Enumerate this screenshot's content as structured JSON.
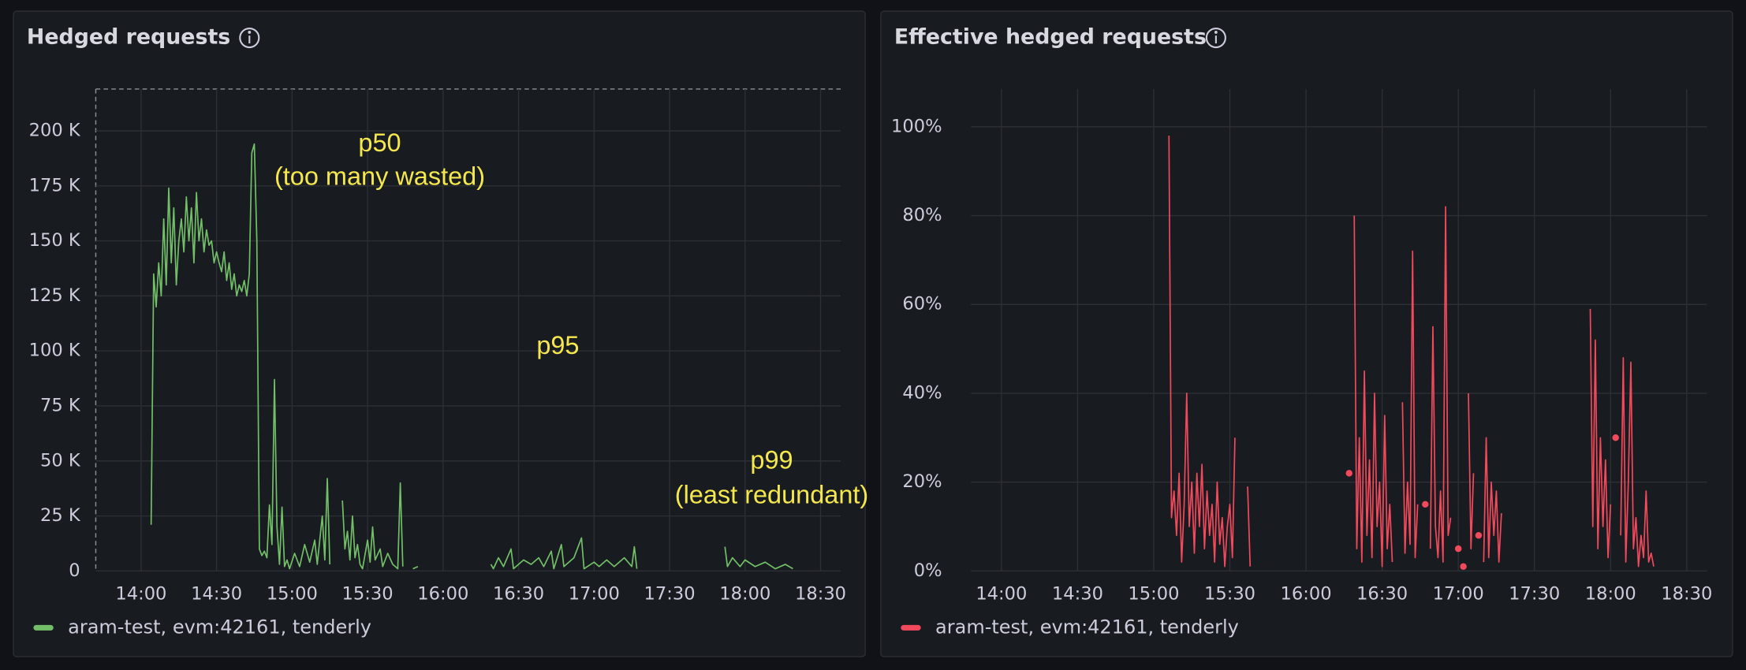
{
  "charts": [
    {
      "type": "line",
      "title": "Hedged requests",
      "x": [
        "14:04",
        "14:05",
        "14:06",
        "14:07",
        "14:08",
        "14:09",
        "14:10",
        "14:11",
        "14:12",
        "14:13",
        "14:14",
        "14:15",
        "14:16",
        "14:17",
        "14:18",
        "14:19",
        "14:20",
        "14:21",
        "14:22",
        "14:23",
        "14:24",
        "14:25",
        "14:26",
        "14:27",
        "14:28",
        "14:29",
        "14:30",
        "14:31",
        "14:32",
        "14:33",
        "14:34",
        "14:35",
        "14:36",
        "14:37",
        "14:38",
        "14:39",
        "14:40",
        "14:41",
        "14:42",
        "14:43",
        "14:44",
        "14:45",
        "14:46",
        "14:47",
        "14:48",
        "14:49",
        "14:50",
        "14:51",
        "14:52",
        "14:53",
        "14:54",
        "14:55",
        "14:56",
        "14:57",
        "14:58",
        "14:59",
        "15:01",
        "15:03",
        "15:05",
        "15:07",
        "15:09",
        "15:10",
        "15:12",
        "15:13",
        "15:14",
        "15:15",
        "15:16",
        "15:20",
        "15:21",
        "15:22",
        "15:23",
        "15:24",
        "15:25",
        "15:26",
        "15:27",
        "15:28",
        "15:30",
        "15:31",
        "15:32",
        "15:33",
        "15:35",
        "15:36",
        "15:38",
        "15:40",
        "15:42",
        "15:43",
        "15:44",
        "15:45",
        "15:48",
        "15:50",
        "15:51",
        "16:19",
        "16:20",
        "16:22",
        "16:24",
        "16:27",
        "16:28",
        "16:32",
        "16:35",
        "16:38",
        "16:40",
        "16:43",
        "16:44",
        "16:47",
        "16:48",
        "16:52",
        "16:55",
        "16:56",
        "17:00",
        "17:02",
        "17:05",
        "17:08",
        "17:12",
        "17:15",
        "17:16",
        "17:17",
        "17:18",
        "17:52",
        "17:53",
        "17:55",
        "17:58",
        "18:00",
        "18:04",
        "18:08",
        "18:12",
        "18:16",
        "18:19"
      ],
      "series": [
        {
          "name": "aram-test, evm:42161, tenderly",
          "color": "#73bf69",
          "values": [
            21000,
            135000,
            120000,
            140000,
            125000,
            160000,
            130000,
            174000,
            140000,
            165000,
            130000,
            150000,
            160000,
            145000,
            170000,
            150000,
            165000,
            140000,
            172000,
            150000,
            160000,
            145000,
            155000,
            148000,
            150000,
            140000,
            145000,
            140000,
            136000,
            145000,
            132000,
            140000,
            128000,
            135000,
            125000,
            130000,
            127000,
            132000,
            125000,
            135000,
            190000,
            194000,
            150000,
            10000,
            7000,
            9000,
            6000,
            30000,
            12000,
            87000,
            20000,
            3000,
            29000,
            2000,
            5000,
            1000,
            8000,
            2000,
            12000,
            4000,
            14000,
            3000,
            25000,
            5000,
            42000,
            3000,
            null,
            32000,
            10000,
            18000,
            5000,
            25000,
            6000,
            12000,
            3000,
            1000,
            14000,
            4000,
            20000,
            5000,
            10000,
            2000,
            8000,
            3000,
            1000,
            40000,
            2000,
            null,
            1000,
            2000,
            null,
            3000,
            1000,
            6000,
            2000,
            10000,
            1000,
            5000,
            3000,
            6000,
            2000,
            9000,
            1000,
            12000,
            2000,
            6000,
            15000,
            1000,
            4000,
            2000,
            5000,
            2000,
            6000,
            2000,
            11000,
            1000,
            null,
            11000,
            2000,
            6000,
            2000,
            5000,
            2000,
            4000,
            1000,
            3000,
            1000
          ]
        }
      ],
      "xlim": [
        "13:42",
        "18:38"
      ],
      "xticks": [
        "14:00",
        "14:30",
        "15:00",
        "15:30",
        "16:00",
        "16:30",
        "17:00",
        "17:30",
        "18:00",
        "18:30"
      ],
      "ylim": [
        0,
        219000
      ],
      "yticks": [
        0,
        {
          "value": 25000,
          "label": "25 K"
        },
        {
          "value": 50000,
          "label": "50 K"
        },
        {
          "value": 75000,
          "label": "75 K"
        },
        {
          "value": 100000,
          "label": "100 K"
        },
        {
          "value": 125000,
          "label": "125 K"
        },
        {
          "value": 150000,
          "label": "150 K"
        },
        {
          "value": 175000,
          "label": "175 K"
        },
        {
          "value": 200000,
          "label": "200 K"
        }
      ],
      "grid": true,
      "annotations": [
        {
          "lines": [
            "p50",
            "(too many wasted)"
          ]
        },
        {
          "lines": [
            "p95"
          ]
        },
        {
          "lines": [
            "p99",
            "(least redundant)"
          ]
        }
      ]
    },
    {
      "type": "line",
      "title": "Effective hedged requests",
      "x": [
        "15:06",
        "15:07",
        "15:08",
        "15:09",
        "15:10",
        "15:11",
        "15:12",
        "15:13",
        "15:14",
        "15:15",
        "15:16",
        "15:17",
        "15:18",
        "15:19",
        "15:20",
        "15:21",
        "15:22",
        "15:23",
        "15:24",
        "15:25",
        "15:26",
        "15:27",
        "15:28",
        "15:29",
        "15:30",
        "15:31",
        "15:32",
        "15:33",
        "15:37",
        "15:38",
        "15:39",
        "16:17",
        "16:18",
        "16:19",
        "16:20",
        "16:21",
        "16:22",
        "16:23",
        "16:24",
        "16:25",
        "16:26",
        "16:27",
        "16:28",
        "16:29",
        "16:30",
        "16:31",
        "16:32",
        "16:33",
        "16:34",
        "16:35",
        "16:38",
        "16:39",
        "16:40",
        "16:41",
        "16:42",
        "16:43",
        "16:44",
        "16:45",
        "16:47",
        "16:48",
        "16:49",
        "16:50",
        "16:51",
        "16:52",
        "16:53",
        "16:54",
        "16:55",
        "16:56",
        "16:57",
        "16:58",
        "17:00",
        "17:01",
        "17:02",
        "17:03",
        "17:04",
        "17:05",
        "17:06",
        "17:07",
        "17:08",
        "17:09",
        "17:10",
        "17:11",
        "17:12",
        "17:13",
        "17:14",
        "17:15",
        "17:16",
        "17:17",
        "17:18",
        "17:52",
        "17:53",
        "17:54",
        "17:55",
        "17:56",
        "17:57",
        "17:58",
        "17:59",
        "18:00",
        "18:01",
        "18:02",
        "18:03",
        "18:04",
        "18:05",
        "18:06",
        "18:07",
        "18:08",
        "18:09",
        "18:10",
        "18:11",
        "18:12",
        "18:13",
        "18:14",
        "18:15",
        "18:16",
        "18:17"
      ],
      "series": [
        {
          "name": "aram-test, evm:42161, tenderly",
          "color": "#f2495c",
          "values": [
            98,
            12,
            18,
            8,
            22,
            2,
            15,
            40,
            10,
            20,
            4,
            22,
            10,
            24,
            5,
            18,
            8,
            15,
            2,
            20,
            6,
            12,
            1,
            10,
            15,
            3,
            30,
            null,
            19,
            1,
            null,
            22,
            null,
            80,
            5,
            30,
            2,
            45,
            8,
            25,
            3,
            40,
            10,
            20,
            1,
            35,
            5,
            15,
            2,
            null,
            38,
            4,
            20,
            6,
            72,
            3,
            15,
            null,
            15,
            null,
            5,
            55,
            10,
            3,
            18,
            2,
            82,
            8,
            12,
            null,
            5,
            null,
            1,
            null,
            40,
            5,
            22,
            null,
            8,
            null,
            2,
            30,
            3,
            20,
            8,
            18,
            2,
            13,
            null,
            59,
            10,
            52,
            5,
            30,
            10,
            25,
            3,
            15,
            null,
            30,
            null,
            8,
            48,
            2,
            20,
            47,
            5,
            12,
            1,
            8,
            3,
            18,
            2,
            4,
            1
          ]
        }
      ],
      "xlim": [
        "13:48",
        "18:38"
      ],
      "xticks": [
        "14:00",
        "14:30",
        "15:00",
        "15:30",
        "16:00",
        "16:30",
        "17:00",
        "17:30",
        "18:00",
        "18:30"
      ],
      "ylim": [
        0,
        108.5
      ],
      "yticks": [
        {
          "value": 0,
          "label": "0%"
        },
        {
          "value": 20,
          "label": "20%"
        },
        {
          "value": 40,
          "label": "40%"
        },
        {
          "value": 60,
          "label": "60%"
        },
        {
          "value": 80,
          "label": "80%"
        },
        {
          "value": 100,
          "label": "100%"
        }
      ],
      "grid": true
    }
  ]
}
